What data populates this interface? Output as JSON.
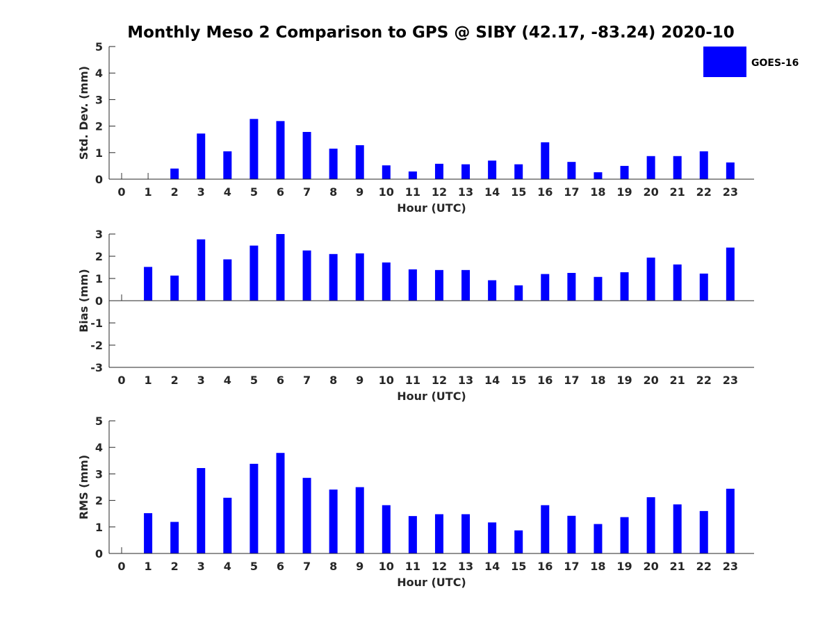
{
  "title": "Monthly Meso 2 Comparison to GPS @ SIBY (42.17, -83.24) 2020-10",
  "legend": {
    "label": "GOES-16",
    "color": "#0000ff"
  },
  "chart_data": [
    {
      "type": "bar",
      "xlabel": "Hour (UTC)",
      "ylabel": "Std. Dev. (mm)",
      "ylim": [
        0,
        5
      ],
      "yticks": [
        0,
        1,
        2,
        3,
        4,
        5
      ],
      "categories": [
        "0",
        "1",
        "2",
        "3",
        "4",
        "5",
        "6",
        "7",
        "8",
        "9",
        "10",
        "11",
        "12",
        "13",
        "14",
        "15",
        "16",
        "17",
        "18",
        "19",
        "20",
        "21",
        "22",
        "23"
      ],
      "series": [
        {
          "name": "GOES-16",
          "color": "#0000ff",
          "values": [
            0,
            0,
            0.4,
            1.72,
            1.05,
            2.27,
            2.19,
            1.78,
            1.15,
            1.28,
            0.52,
            0.29,
            0.58,
            0.56,
            0.7,
            0.56,
            1.39,
            0.65,
            0.26,
            0.5,
            0.87,
            0.87,
            1.05,
            0.63
          ]
        }
      ],
      "grid": false
    },
    {
      "type": "bar",
      "xlabel": "Hour (UTC)",
      "ylabel": "Bias (mm)",
      "ylim": [
        -3,
        3
      ],
      "yticks": [
        -3,
        -2,
        -1,
        0,
        1,
        2,
        3
      ],
      "categories": [
        "0",
        "1",
        "2",
        "3",
        "4",
        "5",
        "6",
        "7",
        "8",
        "9",
        "10",
        "11",
        "12",
        "13",
        "14",
        "15",
        "16",
        "17",
        "18",
        "19",
        "20",
        "21",
        "22",
        "23"
      ],
      "series": [
        {
          "name": "GOES-16",
          "color": "#0000ff",
          "values": [
            0,
            1.52,
            1.13,
            2.76,
            1.86,
            2.48,
            3.0,
            2.26,
            2.1,
            2.13,
            1.72,
            1.41,
            1.38,
            1.38,
            0.92,
            0.69,
            1.2,
            1.25,
            1.07,
            1.28,
            1.94,
            1.63,
            1.22,
            2.39
          ]
        }
      ],
      "grid": false
    },
    {
      "type": "bar",
      "xlabel": "Hour (UTC)",
      "ylabel": "RMS (mm)",
      "ylim": [
        0,
        5
      ],
      "yticks": [
        0,
        1,
        2,
        3,
        4,
        5
      ],
      "categories": [
        "0",
        "1",
        "2",
        "3",
        "4",
        "5",
        "6",
        "7",
        "8",
        "9",
        "10",
        "11",
        "12",
        "13",
        "14",
        "15",
        "16",
        "17",
        "18",
        "19",
        "20",
        "21",
        "22",
        "23"
      ],
      "series": [
        {
          "name": "GOES-16",
          "color": "#0000ff",
          "values": [
            0,
            1.52,
            1.19,
            3.22,
            2.1,
            3.38,
            3.79,
            2.85,
            2.41,
            2.5,
            1.82,
            1.41,
            1.48,
            1.48,
            1.17,
            0.87,
            1.82,
            1.42,
            1.11,
            1.37,
            2.12,
            1.85,
            1.6,
            2.44
          ]
        }
      ],
      "grid": false
    }
  ]
}
